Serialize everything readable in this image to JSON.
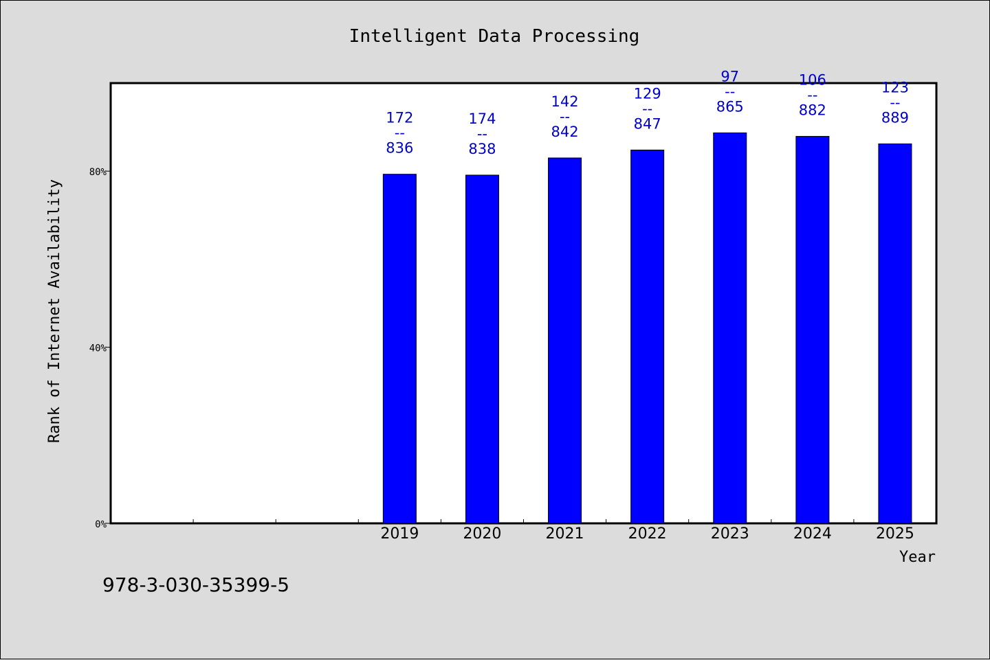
{
  "chart_data": {
    "type": "bar",
    "title": "Intelligent Data Processing",
    "xlabel": "Year",
    "ylabel": "Rank of Internet Availability",
    "categories": [
      "",
      "",
      "",
      "2019",
      "2020",
      "2021",
      "2022",
      "2023",
      "2024",
      "2025"
    ],
    "values": [
      null,
      null,
      null,
      79.3,
      79.1,
      83.0,
      84.8,
      88.7,
      87.9,
      86.2
    ],
    "labels_top": [
      null,
      null,
      null,
      "172",
      "174",
      "142",
      "129",
      "97",
      "106",
      "123"
    ],
    "labels_sep": "--",
    "labels_bottom": [
      null,
      null,
      null,
      "836",
      "838",
      "842",
      "847",
      "865",
      "882",
      "889"
    ],
    "yticks": [
      0,
      40,
      80
    ],
    "ytick_labels": [
      "0%",
      "40%",
      "80%"
    ],
    "ylim": [
      0,
      100
    ],
    "grid": false,
    "bar_color": "#0000ff",
    "label_color": "#0000cc"
  },
  "footer": {
    "isbn": "978-3-030-35399-5"
  }
}
